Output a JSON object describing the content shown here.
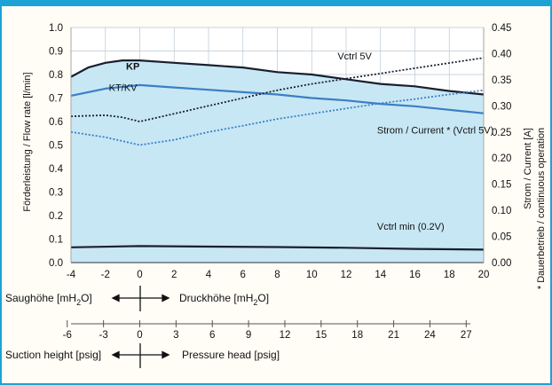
{
  "chart_data": {
    "type": "line",
    "x_ticks": [
      -4,
      -2,
      0,
      2,
      4,
      6,
      8,
      10,
      12,
      14,
      16,
      18,
      20
    ],
    "y_left_ticks": [
      "0.0",
      "0.1",
      "0.2",
      "0.3",
      "0.4",
      "0.5",
      "0.6",
      "0.7",
      "0.8",
      "0.9",
      "1.0"
    ],
    "y_right_ticks": [
      "0.00",
      "0.05",
      "0.10",
      "0.15",
      "0.20",
      "0.25",
      "0.30",
      "0.35",
      "0.40",
      "0.45"
    ],
    "ylabel_left": "Förderleistung / Flow rate [l/min]",
    "ylabel_right": "Strom / Current [A]",
    "right_note": "* Dauerbetrieb / continuous operation",
    "xlim": [
      -4,
      20
    ],
    "ylim_left": [
      0,
      1.0
    ],
    "ylim_right": [
      0,
      0.45
    ],
    "series": [
      {
        "name": "KP",
        "axis": "left",
        "style": "solid",
        "color": "#1a1f2e",
        "x": [
          -4,
          -3,
          -2,
          -1,
          0,
          2,
          4,
          6,
          8,
          10,
          12,
          14,
          16,
          18,
          20
        ],
        "y": [
          0.79,
          0.83,
          0.85,
          0.86,
          0.86,
          0.85,
          0.84,
          0.83,
          0.81,
          0.8,
          0.78,
          0.76,
          0.75,
          0.73,
          0.715
        ]
      },
      {
        "name": "KT/KV",
        "axis": "left",
        "style": "solid",
        "color": "#3b7fc4",
        "x": [
          -4,
          -2,
          0,
          2,
          4,
          6,
          8,
          10,
          12,
          14,
          16,
          18,
          20
        ],
        "y": [
          0.71,
          0.74,
          0.755,
          0.745,
          0.735,
          0.725,
          0.715,
          0.7,
          0.69,
          0.675,
          0.665,
          0.65,
          0.635
        ]
      },
      {
        "name": "",
        "axis": "left",
        "style": "solid",
        "color": "#1a1f2e",
        "x": [
          -4,
          0,
          4,
          8,
          12,
          16,
          20
        ],
        "y": [
          0.065,
          0.07,
          0.068,
          0.066,
          0.063,
          0.058,
          0.055
        ]
      },
      {
        "name": "",
        "axis": "right",
        "style": "dotted",
        "color": "#1a1f2e",
        "x": [
          -4,
          -2,
          -1,
          0,
          2,
          4,
          6,
          8,
          10,
          12,
          14,
          16,
          18,
          20
        ],
        "y": [
          0.28,
          0.282,
          0.278,
          0.27,
          0.285,
          0.3,
          0.315,
          0.33,
          0.342,
          0.352,
          0.362,
          0.372,
          0.382,
          0.392
        ]
      },
      {
        "name": "",
        "axis": "right",
        "style": "dotted",
        "color": "#3b7fc4",
        "x": [
          -4,
          -2,
          0,
          2,
          4,
          6,
          8,
          10,
          12,
          14,
          16,
          18,
          20
        ],
        "y": [
          0.25,
          0.24,
          0.225,
          0.235,
          0.25,
          0.262,
          0.275,
          0.285,
          0.295,
          0.305,
          0.313,
          0.322,
          0.33
        ]
      }
    ],
    "annotations": [
      {
        "text": "KP",
        "x": -0.8,
        "y": 0.82,
        "color": "#1a1f2e",
        "bold": true
      },
      {
        "text": "KT/KV",
        "x": -1.8,
        "y": 0.73,
        "color": "#3b7fc4",
        "bold": false
      },
      {
        "text": "Vctrl 5V",
        "x": 11.5,
        "y": 0.865,
        "color": "#1a1f2e",
        "bold": false
      },
      {
        "text": "Strom / Current * (Vctrl 5V)",
        "x": 13.8,
        "y": 0.55,
        "color": "#1a1f2e",
        "bold": false
      },
      {
        "text": "Vctrl min (0.2V)",
        "x": 13.8,
        "y": 0.14,
        "color": "#1a1f2e",
        "bold": false
      }
    ],
    "fill_color": "#c8e7f5",
    "grid": true
  },
  "bottom": {
    "saug_label": "Saughöhe [mH",
    "saug_sub": "2",
    "saug_end": "O]",
    "druck_label": "Druckhöhe [mH",
    "druck_sub": "2",
    "druck_end": "O]",
    "psig_ticks": [
      "-6",
      "-3",
      "0",
      "3",
      "6",
      "9",
      "12",
      "15",
      "18",
      "21",
      "24",
      "27"
    ],
    "suction_label": "Suction height [psig]",
    "pressure_label": "Pressure head [psig]"
  }
}
